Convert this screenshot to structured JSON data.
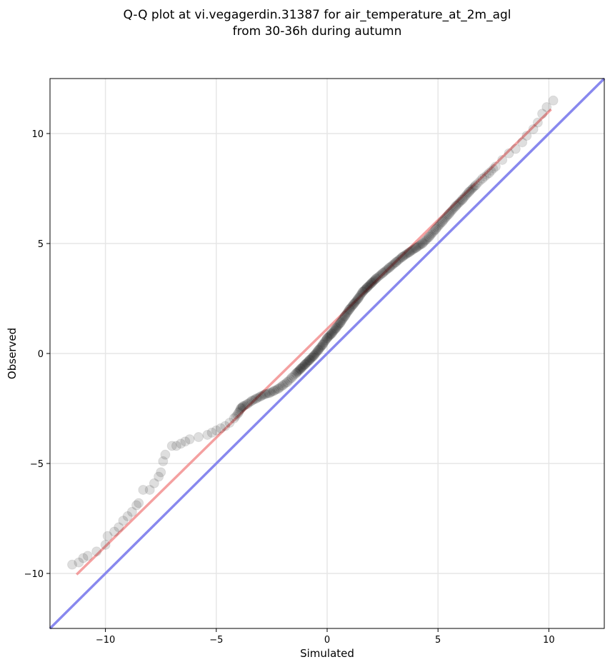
{
  "chart_data": {
    "type": "scatter",
    "title": [
      "Q-Q plot at vi.vegagerdin.31387 for air_temperature_at_2m_agl",
      "from 30-36h during autumn"
    ],
    "xlabel": "Simulated",
    "ylabel": "Observed",
    "xlim": [
      -12.5,
      12.5
    ],
    "ylim": [
      -12.5,
      12.5
    ],
    "xticks": [
      -10,
      -5,
      0,
      5,
      10
    ],
    "yticks": [
      -10,
      -5,
      0,
      5,
      10
    ],
    "xtick_labels": [
      "−10",
      "−5",
      "0",
      "5",
      "10"
    ],
    "ytick_labels": [
      "−10",
      "−5",
      "0",
      "5",
      "10"
    ],
    "grid": true,
    "quantiles": [
      {
        "x": -11.5,
        "y": -9.6
      },
      {
        "x": -11.2,
        "y": -9.5
      },
      {
        "x": -11.0,
        "y": -9.3
      },
      {
        "x": -10.8,
        "y": -9.2
      },
      {
        "x": -10.4,
        "y": -9.0
      },
      {
        "x": -10.0,
        "y": -8.7
      },
      {
        "x": -9.9,
        "y": -8.3
      },
      {
        "x": -9.6,
        "y": -8.1
      },
      {
        "x": -9.4,
        "y": -7.9
      },
      {
        "x": -9.2,
        "y": -7.6
      },
      {
        "x": -9.0,
        "y": -7.4
      },
      {
        "x": -8.8,
        "y": -7.2
      },
      {
        "x": -8.6,
        "y": -6.9
      },
      {
        "x": -8.5,
        "y": -6.8
      },
      {
        "x": -8.3,
        "y": -6.2
      },
      {
        "x": -8.0,
        "y": -6.2
      },
      {
        "x": -7.8,
        "y": -5.9
      },
      {
        "x": -7.6,
        "y": -5.6
      },
      {
        "x": -7.5,
        "y": -5.4
      },
      {
        "x": -7.4,
        "y": -4.9
      },
      {
        "x": -7.3,
        "y": -4.6
      },
      {
        "x": -7.0,
        "y": -4.2
      },
      {
        "x": -6.8,
        "y": -4.2
      },
      {
        "x": -6.6,
        "y": -4.1
      },
      {
        "x": -6.4,
        "y": -4.0
      },
      {
        "x": -6.2,
        "y": -3.9
      },
      {
        "x": -5.8,
        "y": -3.8
      },
      {
        "x": -5.4,
        "y": -3.7
      },
      {
        "x": -5.2,
        "y": -3.6
      },
      {
        "x": -5.0,
        "y": -3.5
      },
      {
        "x": -4.8,
        "y": -3.4
      },
      {
        "x": -4.6,
        "y": -3.3
      },
      {
        "x": -4.4,
        "y": -3.15
      },
      {
        "x": -4.2,
        "y": -2.95
      },
      {
        "x": -4.0,
        "y": -2.7
      },
      {
        "x": -3.9,
        "y": -2.5
      },
      {
        "x": -3.8,
        "y": -2.4
      },
      {
        "x": -3.6,
        "y": -2.3
      },
      {
        "x": -3.4,
        "y": -2.15
      },
      {
        "x": -3.2,
        "y": -2.05
      },
      {
        "x": -3.0,
        "y": -1.95
      },
      {
        "x": -2.8,
        "y": -1.85
      },
      {
        "x": -2.6,
        "y": -1.8
      },
      {
        "x": -2.4,
        "y": -1.7
      },
      {
        "x": -2.2,
        "y": -1.6
      },
      {
        "x": -2.0,
        "y": -1.45
      },
      {
        "x": -1.8,
        "y": -1.3
      },
      {
        "x": -1.6,
        "y": -1.1
      },
      {
        "x": -1.4,
        "y": -0.9
      },
      {
        "x": -1.2,
        "y": -0.7
      },
      {
        "x": -1.0,
        "y": -0.5
      },
      {
        "x": -0.8,
        "y": -0.3
      },
      {
        "x": -0.6,
        "y": -0.1
      },
      {
        "x": -0.4,
        "y": 0.15
      },
      {
        "x": -0.2,
        "y": 0.4
      },
      {
        "x": 0.0,
        "y": 0.7
      },
      {
        "x": 0.2,
        "y": 0.9
      },
      {
        "x": 0.4,
        "y": 1.15
      },
      {
        "x": 0.6,
        "y": 1.4
      },
      {
        "x": 0.8,
        "y": 1.7
      },
      {
        "x": 1.0,
        "y": 2.0
      },
      {
        "x": 1.2,
        "y": 2.25
      },
      {
        "x": 1.4,
        "y": 2.5
      },
      {
        "x": 1.6,
        "y": 2.8
      },
      {
        "x": 1.8,
        "y": 3.0
      },
      {
        "x": 2.0,
        "y": 3.2
      },
      {
        "x": 2.2,
        "y": 3.4
      },
      {
        "x": 2.5,
        "y": 3.65
      },
      {
        "x": 2.8,
        "y": 3.9
      },
      {
        "x": 3.1,
        "y": 4.15
      },
      {
        "x": 3.4,
        "y": 4.4
      },
      {
        "x": 3.7,
        "y": 4.6
      },
      {
        "x": 4.0,
        "y": 4.8
      },
      {
        "x": 4.3,
        "y": 5.0
      },
      {
        "x": 4.6,
        "y": 5.3
      },
      {
        "x": 4.9,
        "y": 5.65
      },
      {
        "x": 5.2,
        "y": 6.0
      },
      {
        "x": 5.5,
        "y": 6.35
      },
      {
        "x": 5.8,
        "y": 6.7
      },
      {
        "x": 6.1,
        "y": 7.0
      },
      {
        "x": 6.4,
        "y": 7.35
      },
      {
        "x": 6.7,
        "y": 7.65
      },
      {
        "x": 7.0,
        "y": 7.95
      },
      {
        "x": 7.3,
        "y": 8.2
      },
      {
        "x": 7.6,
        "y": 8.5
      },
      {
        "x": 7.9,
        "y": 8.8
      },
      {
        "x": 8.2,
        "y": 9.1
      },
      {
        "x": 8.5,
        "y": 9.3
      },
      {
        "x": 8.8,
        "y": 9.6
      },
      {
        "x": 9.0,
        "y": 9.9
      },
      {
        "x": 9.3,
        "y": 10.2
      },
      {
        "x": 9.5,
        "y": 10.5
      },
      {
        "x": 9.7,
        "y": 10.9
      },
      {
        "x": 9.9,
        "y": 11.2
      },
      {
        "x": 10.2,
        "y": 11.5
      }
    ],
    "fit_line": {
      "x": [
        -11.3,
        10.1
      ],
      "y": [
        -10.05,
        11.1
      ]
    },
    "identity_line": {
      "x": [
        -12.5,
        12.5
      ],
      "y": [
        -12.5,
        12.5
      ]
    },
    "colors": {
      "points": "#000000",
      "fit_line": "#f08080",
      "identity_line": "#8888ee",
      "grid": "#e6e6e6"
    }
  }
}
